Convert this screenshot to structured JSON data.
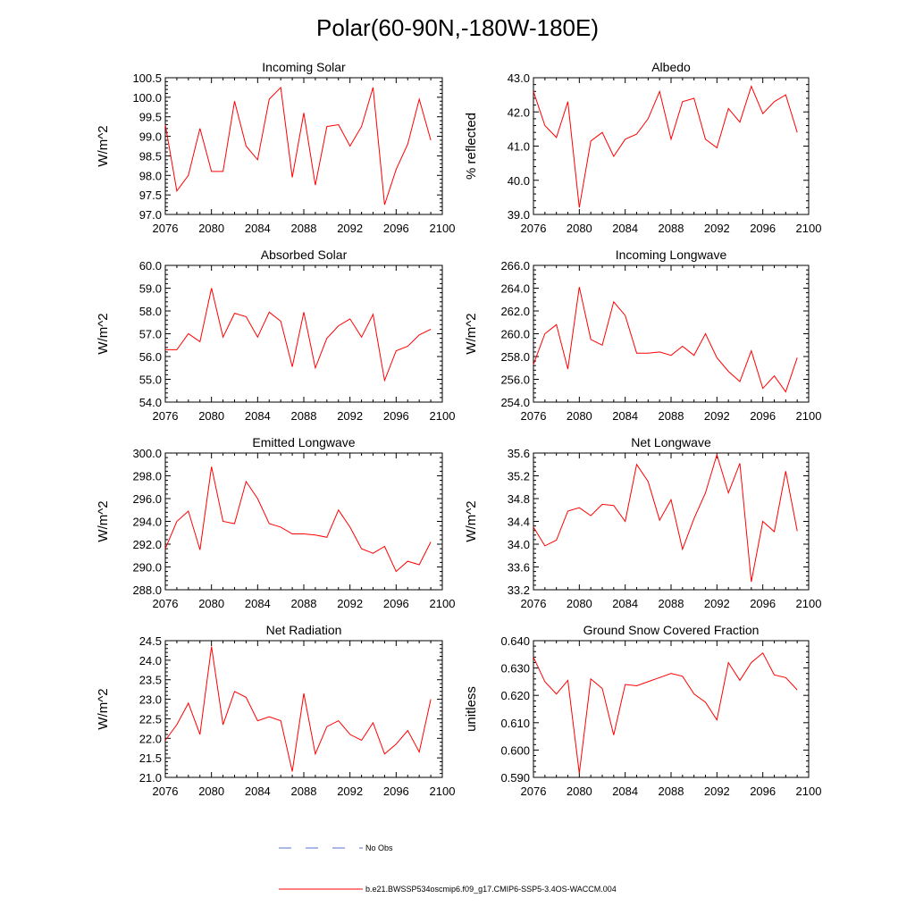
{
  "figure": {
    "title": "Polar(60-90N,-180W-180E)"
  },
  "legend": {
    "obs_label": "No Obs",
    "obs_color": "#5a6fd6",
    "model_label": "b.e21.BWSSP534oscmip6.f09_g17.CMIP6-SSP5-3.4OS-WACCM.004",
    "model_color": "#ff0000"
  },
  "chart_data": [
    {
      "type": "line",
      "title": "Incoming Solar",
      "ylabel": "W/m^2",
      "xlabel": "",
      "xlim": [
        2076,
        2100
      ],
      "xticks": [
        "2076",
        "2080",
        "2084",
        "2088",
        "2092",
        "2096",
        "2100"
      ],
      "ylim": [
        97.0,
        100.5
      ],
      "yticks": [
        "97.0",
        "97.5",
        "98.0",
        "98.5",
        "99.0",
        "99.5",
        "100.0",
        "100.5"
      ],
      "series": [
        {
          "name": "b.e21.BWSSP534oscmip6.f09_g17.CMIP6-SSP5-3.4OS-WACCM.004",
          "x": [
            2076,
            2077,
            2078,
            2079,
            2080,
            2081,
            2082,
            2083,
            2084,
            2085,
            2086,
            2087,
            2088,
            2089,
            2090,
            2091,
            2092,
            2093,
            2094,
            2095,
            2096,
            2097,
            2098,
            2099
          ],
          "y": [
            99.3,
            97.6,
            98.0,
            99.2,
            98.1,
            98.1,
            99.9,
            98.75,
            98.4,
            99.95,
            100.25,
            97.95,
            99.6,
            97.75,
            99.25,
            99.3,
            98.75,
            99.25,
            100.25,
            97.25,
            98.15,
            98.8,
            99.95,
            98.9
          ]
        }
      ]
    },
    {
      "type": "line",
      "title": "Albedo",
      "ylabel": "% reflected",
      "xlabel": "",
      "xlim": [
        2076,
        2100
      ],
      "xticks": [
        "2076",
        "2080",
        "2084",
        "2088",
        "2092",
        "2096",
        "2100"
      ],
      "ylim": [
        39.0,
        43.0
      ],
      "yticks": [
        "39.0",
        "40.0",
        "41.0",
        "42.0",
        "43.0"
      ],
      "series": [
        {
          "name": "b.e21.BWSSP534oscmip6.f09_g17.CMIP6-SSP5-3.4OS-WACCM.004",
          "x": [
            2076,
            2077,
            2078,
            2079,
            2080,
            2081,
            2082,
            2083,
            2084,
            2085,
            2086,
            2087,
            2088,
            2089,
            2090,
            2091,
            2092,
            2093,
            2094,
            2095,
            2096,
            2097,
            2098,
            2099
          ],
          "y": [
            42.6,
            41.6,
            41.25,
            42.3,
            39.2,
            41.15,
            41.4,
            40.7,
            41.2,
            41.35,
            41.8,
            42.6,
            41.2,
            42.3,
            42.4,
            41.2,
            40.95,
            42.1,
            41.7,
            42.75,
            41.95,
            42.3,
            42.5,
            41.4
          ]
        }
      ]
    },
    {
      "type": "line",
      "title": "Absorbed Solar",
      "ylabel": "W/m^2",
      "xlabel": "",
      "xlim": [
        2076,
        2100
      ],
      "xticks": [
        "2076",
        "2080",
        "2084",
        "2088",
        "2092",
        "2096",
        "2100"
      ],
      "ylim": [
        54.0,
        60.0
      ],
      "yticks": [
        "54.0",
        "55.0",
        "56.0",
        "57.0",
        "58.0",
        "59.0",
        "60.0"
      ],
      "series": [
        {
          "name": "b.e21.BWSSP534oscmip6.f09_g17.CMIP6-SSP5-3.4OS-WACCM.004",
          "x": [
            2076,
            2077,
            2078,
            2079,
            2080,
            2081,
            2082,
            2083,
            2084,
            2085,
            2086,
            2087,
            2088,
            2089,
            2090,
            2091,
            2092,
            2093,
            2094,
            2095,
            2096,
            2097,
            2098,
            2099
          ],
          "y": [
            56.3,
            56.3,
            57.0,
            56.65,
            59.0,
            56.85,
            57.9,
            57.75,
            56.85,
            57.95,
            57.55,
            55.55,
            57.95,
            55.5,
            56.8,
            57.35,
            57.65,
            56.85,
            57.85,
            54.95,
            56.25,
            56.45,
            56.95,
            57.2
          ]
        }
      ]
    },
    {
      "type": "line",
      "title": "Incoming Longwave",
      "ylabel": "W/m^2",
      "xlabel": "",
      "xlim": [
        2076,
        2100
      ],
      "xticks": [
        "2076",
        "2080",
        "2084",
        "2088",
        "2092",
        "2096",
        "2100"
      ],
      "ylim": [
        254.0,
        266.0
      ],
      "yticks": [
        "254.0",
        "256.0",
        "258.0",
        "260.0",
        "262.0",
        "264.0",
        "266.0"
      ],
      "series": [
        {
          "name": "b.e21.BWSSP534oscmip6.f09_g17.CMIP6-SSP5-3.4OS-WACCM.004",
          "x": [
            2076,
            2077,
            2078,
            2079,
            2080,
            2081,
            2082,
            2083,
            2084,
            2085,
            2086,
            2087,
            2088,
            2089,
            2090,
            2091,
            2092,
            2093,
            2094,
            2095,
            2096,
            2097,
            2098,
            2099
          ],
          "y": [
            257.3,
            260.0,
            260.8,
            256.9,
            264.1,
            259.5,
            259.0,
            262.8,
            261.6,
            258.3,
            258.3,
            258.4,
            258.1,
            258.9,
            258.1,
            260.0,
            257.9,
            256.7,
            255.8,
            258.5,
            255.2,
            256.3,
            254.9,
            257.9
          ]
        }
      ]
    },
    {
      "type": "line",
      "title": "Emitted Longwave",
      "ylabel": "W/m^2",
      "xlabel": "",
      "xlim": [
        2076,
        2100
      ],
      "xticks": [
        "2076",
        "2080",
        "2084",
        "2088",
        "2092",
        "2096",
        "2100"
      ],
      "ylim": [
        288.0,
        300.0
      ],
      "yticks": [
        "288.0",
        "290.0",
        "292.0",
        "294.0",
        "296.0",
        "298.0",
        "300.0"
      ],
      "series": [
        {
          "name": "b.e21.BWSSP534oscmip6.f09_g17.CMIP6-SSP5-3.4OS-WACCM.004",
          "x": [
            2076,
            2077,
            2078,
            2079,
            2080,
            2081,
            2082,
            2083,
            2084,
            2085,
            2086,
            2087,
            2088,
            2089,
            2090,
            2091,
            2092,
            2093,
            2094,
            2095,
            2096,
            2097,
            2098,
            2099
          ],
          "y": [
            291.6,
            294.0,
            294.9,
            291.5,
            298.8,
            294.0,
            293.8,
            297.5,
            296.0,
            293.8,
            293.5,
            292.9,
            292.9,
            292.8,
            292.6,
            295.0,
            293.5,
            291.6,
            291.2,
            291.8,
            289.6,
            290.5,
            290.2,
            292.2
          ]
        }
      ]
    },
    {
      "type": "line",
      "title": "Net Longwave",
      "ylabel": "W/m^2",
      "xlabel": "",
      "xlim": [
        2076,
        2100
      ],
      "xticks": [
        "2076",
        "2080",
        "2084",
        "2088",
        "2092",
        "2096",
        "2100"
      ],
      "ylim": [
        33.2,
        35.6
      ],
      "yticks": [
        "33.2",
        "33.6",
        "34.0",
        "34.4",
        "34.8",
        "35.2",
        "35.6"
      ],
      "series": [
        {
          "name": "b.e21.BWSSP534oscmip6.f09_g17.CMIP6-SSP5-3.4OS-WACCM.004",
          "x": [
            2076,
            2077,
            2078,
            2079,
            2080,
            2081,
            2082,
            2083,
            2084,
            2085,
            2086,
            2087,
            2088,
            2089,
            2090,
            2091,
            2092,
            2093,
            2094,
            2095,
            2096,
            2097,
            2098,
            2099
          ],
          "y": [
            34.3,
            33.97,
            34.07,
            34.58,
            34.64,
            34.5,
            34.7,
            34.68,
            34.4,
            35.4,
            35.1,
            34.42,
            34.78,
            33.91,
            34.45,
            34.9,
            35.57,
            34.9,
            35.42,
            33.34,
            34.4,
            34.22,
            35.28,
            34.23
          ]
        }
      ]
    },
    {
      "type": "line",
      "title": "Net Radiation",
      "ylabel": "W/m^2",
      "xlabel": "",
      "xlim": [
        2076,
        2100
      ],
      "xticks": [
        "2076",
        "2080",
        "2084",
        "2088",
        "2092",
        "2096",
        "2100"
      ],
      "ylim": [
        21.0,
        24.5
      ],
      "yticks": [
        "21.0",
        "21.5",
        "22.0",
        "22.5",
        "23.0",
        "23.5",
        "24.0",
        "24.5"
      ],
      "series": [
        {
          "name": "b.e21.BWSSP534oscmip6.f09_g17.CMIP6-SSP5-3.4OS-WACCM.004",
          "x": [
            2076,
            2077,
            2078,
            2079,
            2080,
            2081,
            2082,
            2083,
            2084,
            2085,
            2086,
            2087,
            2088,
            2089,
            2090,
            2091,
            2092,
            2093,
            2094,
            2095,
            2096,
            2097,
            2098,
            2099
          ],
          "y": [
            21.95,
            22.35,
            22.9,
            22.1,
            24.35,
            22.35,
            23.2,
            23.05,
            22.45,
            22.55,
            22.45,
            21.15,
            23.15,
            21.6,
            22.3,
            22.45,
            22.1,
            21.95,
            22.4,
            21.6,
            21.85,
            22.2,
            21.65,
            23.0
          ]
        }
      ]
    },
    {
      "type": "line",
      "title": "Ground Snow Covered Fraction",
      "ylabel": "unitless",
      "xlabel": "",
      "xlim": [
        2076,
        2100
      ],
      "xticks": [
        "2076",
        "2080",
        "2084",
        "2088",
        "2092",
        "2096",
        "2100"
      ],
      "ylim": [
        0.59,
        0.64
      ],
      "yticks": [
        "0.590",
        "0.600",
        "0.610",
        "0.620",
        "0.630",
        "0.640"
      ],
      "series": [
        {
          "name": "b.e21.BWSSP534oscmip6.f09_g17.CMIP6-SSP5-3.4OS-WACCM.004",
          "x": [
            2076,
            2077,
            2078,
            2079,
            2080,
            2081,
            2082,
            2083,
            2084,
            2085,
            2086,
            2087,
            2088,
            2089,
            2090,
            2091,
            2092,
            2093,
            2094,
            2095,
            2096,
            2097,
            2098,
            2099
          ],
          "y": [
            0.634,
            0.625,
            0.6205,
            0.6255,
            0.5915,
            0.626,
            0.6225,
            0.6055,
            0.624,
            0.6235,
            0.625,
            0.6265,
            0.628,
            0.627,
            0.6205,
            0.6175,
            0.611,
            0.632,
            0.6255,
            0.632,
            0.6355,
            0.6275,
            0.6265,
            0.622
          ]
        }
      ]
    }
  ]
}
